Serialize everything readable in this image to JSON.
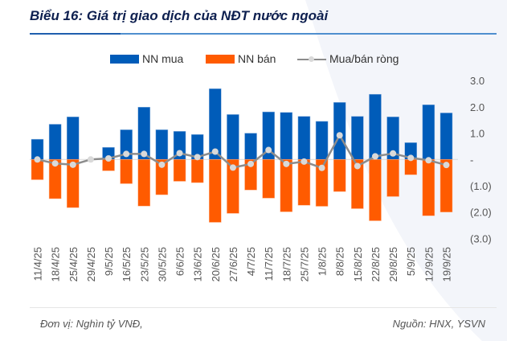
{
  "title": "Biểu 16: Giá trị giao dịch của NĐT nước ngoài",
  "footer": {
    "unit": "Đơn vị: Nghìn tỷ VNĐ,",
    "source": "Nguồn: HNX, YSVN"
  },
  "colors": {
    "buy": "#005CB9",
    "sell": "#FF5B00",
    "net_line": "#8C8C8C",
    "net_marker": "#D9D9D9",
    "title": "#0D1F4F"
  },
  "chart_data": {
    "type": "bar",
    "title": "Biểu 16: Giá trị giao dịch của NĐT nước ngoài",
    "xlabel": "",
    "ylabel": "",
    "y_axis_side": "right",
    "ylim": [
      -3.0,
      3.0
    ],
    "yticks": [
      3.0,
      2.0,
      1.0,
      0,
      -1.0,
      -2.0,
      -3.0
    ],
    "ytick_labels": [
      "3.0",
      "2.0",
      "1.0",
      "-",
      "(1.0)",
      "(2.0)",
      "(3.0)"
    ],
    "legend_position": "top-center",
    "grid": false,
    "categories": [
      "11/4/25",
      "18/4/25",
      "25/4/25",
      "29/4/25",
      "9/5/25",
      "16/5/25",
      "23/5/25",
      "30/5/25",
      "6/6/25",
      "13/6/25",
      "20/6/25",
      "27/6/25",
      "4/7/25",
      "11/7/25",
      "18/7/25",
      "25/7/25",
      "1/8/25",
      "8/8/25",
      "15/8/25",
      "22/8/25",
      "29/8/25",
      "5/9/25",
      "12/9/25",
      "19/9/25"
    ],
    "series": [
      {
        "name": "NN mua",
        "type": "bar",
        "values": [
          0.77,
          1.34,
          1.62,
          0,
          0.46,
          1.13,
          1.99,
          1.13,
          1.07,
          0.95,
          2.69,
          1.71,
          1.0,
          1.81,
          1.79,
          1.64,
          1.45,
          2.17,
          1.64,
          2.48,
          1.62,
          0.64,
          2.08,
          1.77
        ]
      },
      {
        "name": "NN bán",
        "type": "bar",
        "values": [
          -0.77,
          -1.49,
          -1.83,
          0,
          -0.43,
          -0.92,
          -1.77,
          -1.34,
          -0.83,
          -0.88,
          -2.39,
          -2.05,
          -1.16,
          -1.47,
          -1.99,
          -1.74,
          -1.78,
          -1.22,
          -1.87,
          -2.33,
          -1.41,
          -0.58,
          -2.14,
          -2.0
        ]
      },
      {
        "name": "Mua/bán ròng",
        "type": "line",
        "values": [
          0.0,
          -0.15,
          -0.2,
          0.0,
          0.04,
          0.21,
          0.21,
          -0.2,
          0.24,
          0.09,
          0.3,
          -0.31,
          -0.17,
          0.36,
          -0.17,
          -0.08,
          -0.32,
          0.92,
          -0.25,
          0.12,
          0.23,
          0.06,
          -0.03,
          -0.21
        ]
      }
    ]
  }
}
